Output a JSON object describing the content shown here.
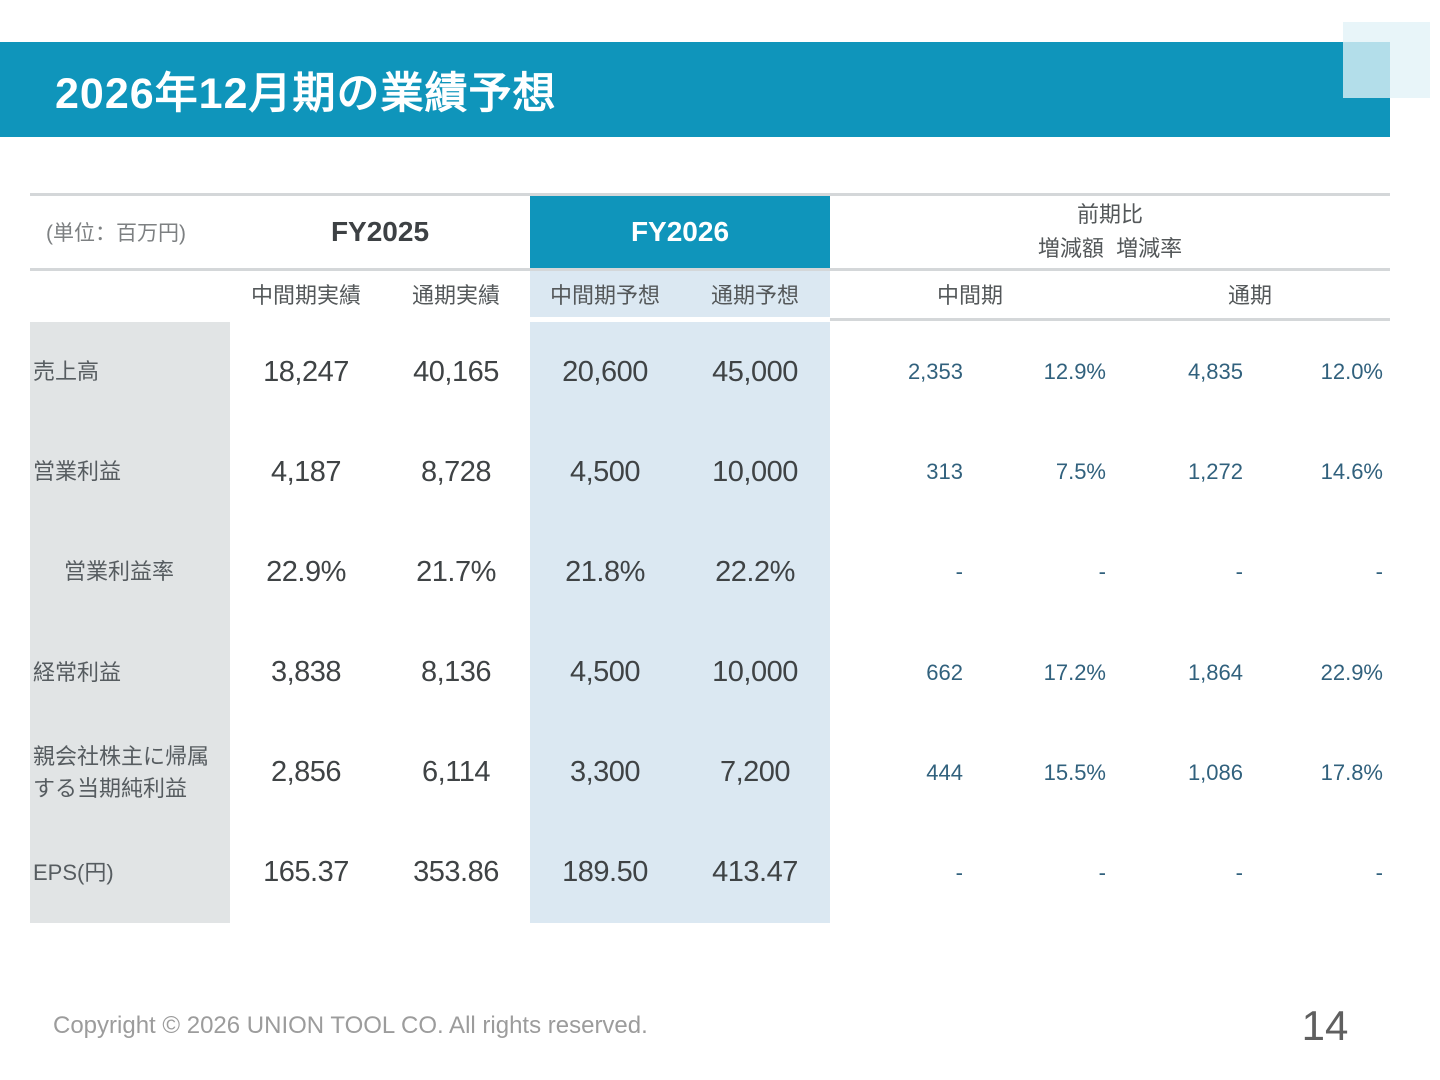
{
  "title_bar": {
    "title": "2026年12月期の業績予想"
  },
  "table": {
    "unit_note": "(単位：百万円)",
    "groups": {
      "fy2025": "FY2025",
      "fy2026": "FY2026",
      "yoy_title": "前期比",
      "yoy_subtitle": "増減額  増減率"
    },
    "columns": {
      "fy2025_h1": "中間期実績",
      "fy2025_full": "通期実績",
      "fy2026_h1": "中間期予想",
      "fy2026_full": "通期予想",
      "yoy_h1": "中間期",
      "yoy_full": "通期"
    },
    "rows": [
      {
        "label": "売上高",
        "fy2025_h1": "18,247",
        "fy2025_full": "40,165",
        "fy2026_h1": "20,600",
        "fy2026_full": "45,000",
        "yoy_h1_amount": "2,353",
        "yoy_h1_rate": "12.9%",
        "yoy_full_amount": "4,835",
        "yoy_full_rate": "12.0%"
      },
      {
        "label": "営業利益",
        "fy2025_h1": "4,187",
        "fy2025_full": "8,728",
        "fy2026_h1": "4,500",
        "fy2026_full": "10,000",
        "yoy_h1_amount": "313",
        "yoy_h1_rate": "7.5%",
        "yoy_full_amount": "1,272",
        "yoy_full_rate": "14.6%"
      },
      {
        "label": "営業利益率",
        "fy2025_h1": "22.9%",
        "fy2025_full": "21.7%",
        "fy2026_h1": "21.8%",
        "fy2026_full": "22.2%",
        "yoy_h1_amount": "-",
        "yoy_h1_rate": "-",
        "yoy_full_amount": "-",
        "yoy_full_rate": "-"
      },
      {
        "label": "経常利益",
        "fy2025_h1": "3,838",
        "fy2025_full": "8,136",
        "fy2026_h1": "4,500",
        "fy2026_full": "10,000",
        "yoy_h1_amount": "662",
        "yoy_h1_rate": "17.2%",
        "yoy_full_amount": "1,864",
        "yoy_full_rate": "22.9%"
      },
      {
        "label": "親会社株主に帰属する当期純利益",
        "fy2025_h1": "2,856",
        "fy2025_full": "6,114",
        "fy2026_h1": "3,300",
        "fy2026_full": "7,200",
        "yoy_h1_amount": "444",
        "yoy_h1_rate": "15.5%",
        "yoy_full_amount": "1,086",
        "yoy_full_rate": "17.8%"
      },
      {
        "label": "EPS(円)",
        "fy2025_h1": "165.37",
        "fy2025_full": "353.86",
        "fy2026_h1": "189.50",
        "fy2026_full": "413.47",
        "yoy_h1_amount": "-",
        "yoy_h1_rate": "-",
        "yoy_full_amount": "-",
        "yoy_full_rate": "-"
      }
    ]
  },
  "footer": {
    "copyright": "Copyright © 2026 UNION TOOL CO. All rights reserved.",
    "page_number": "14"
  },
  "colors": {
    "accent_teal": "#0f95bb",
    "fy2026_column_bg": "#dbe8f2",
    "label_column_bg": "#e1e4e5",
    "yoy_text": "#31617d",
    "rule_gray": "#d4d7d9"
  }
}
